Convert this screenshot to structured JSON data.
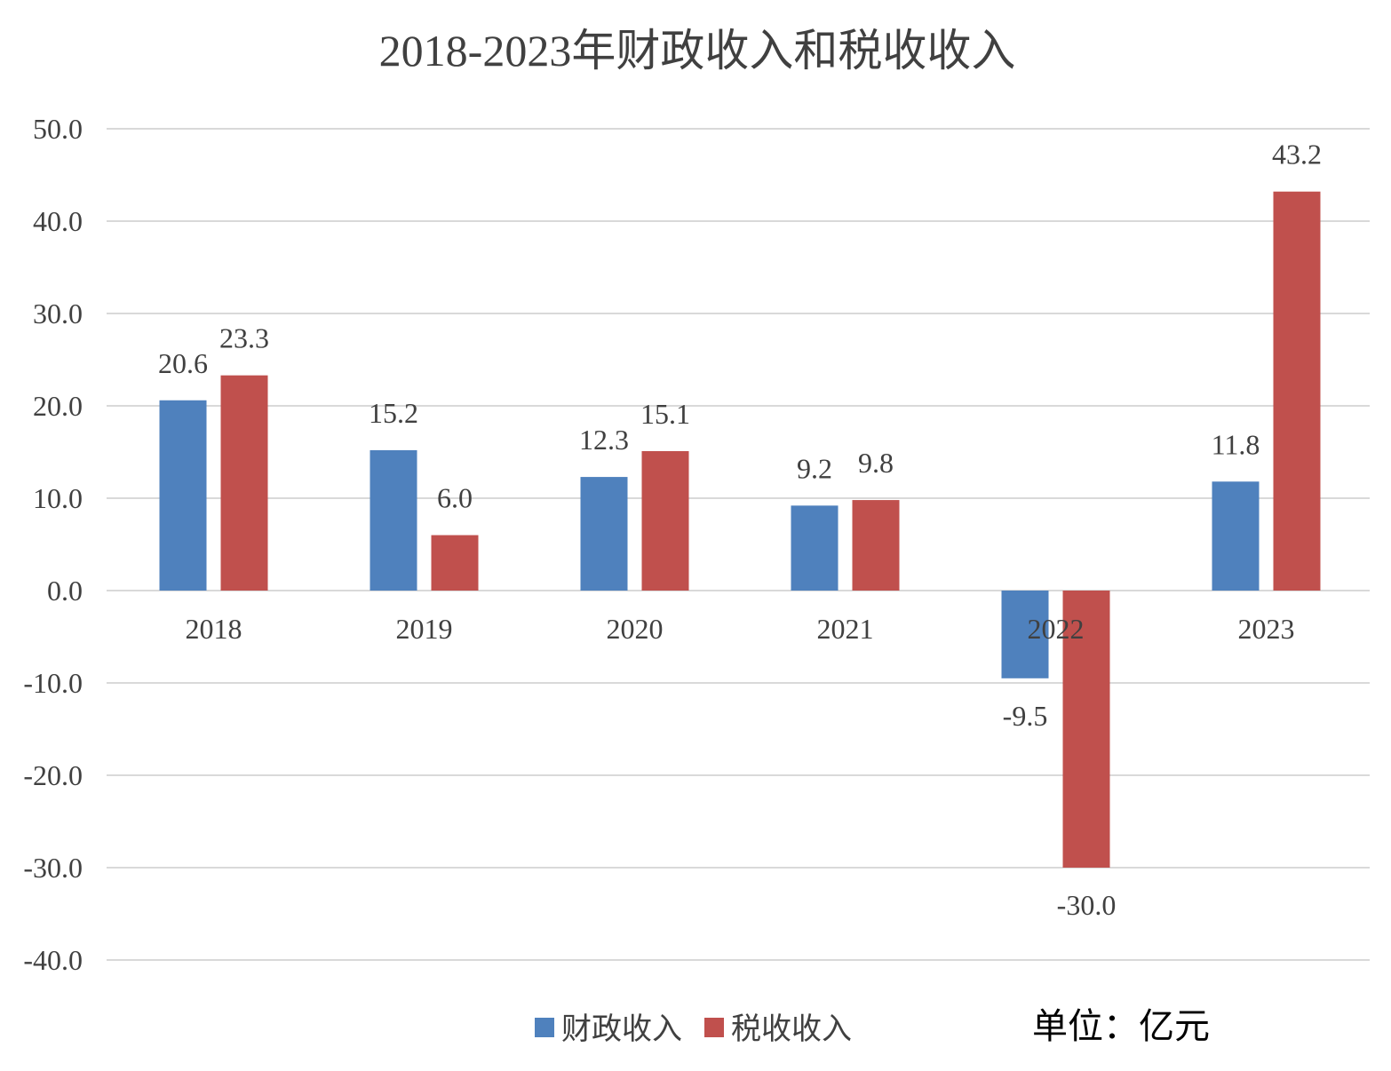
{
  "chart_data": {
    "type": "bar",
    "title": "2018-2023年财政收入和税收收入",
    "categories": [
      "2018",
      "2019",
      "2020",
      "2021",
      "2022",
      "2023"
    ],
    "series": [
      {
        "name": "财政收入",
        "color": "#4f81bd",
        "values": [
          20.6,
          15.2,
          12.3,
          9.2,
          -9.5,
          11.8
        ]
      },
      {
        "name": "税收收入",
        "color": "#c0504d",
        "values": [
          23.3,
          6.0,
          15.1,
          9.8,
          -30.0,
          43.2
        ]
      }
    ],
    "ylim": [
      -40,
      50
    ],
    "yticks": [
      50,
      40,
      30,
      20,
      10,
      0,
      -10,
      -20,
      -30,
      -40
    ],
    "ytick_labels": [
      "50.0",
      "40.0",
      "30.0",
      "20.0",
      "10.0",
      "0.0",
      "-10.0",
      "-20.0",
      "-30.0",
      "-40.0"
    ],
    "data_labels": [
      [
        "20.6",
        "15.2",
        "12.3",
        "9.2",
        "-9.5",
        "11.8"
      ],
      [
        "23.3",
        "6.0",
        "15.1",
        "9.8",
        "-30.0",
        "43.2"
      ]
    ],
    "xlabel": "",
    "ylabel": "",
    "grid": true,
    "legend": "bottom-center",
    "unit_note": "单位：亿元"
  }
}
